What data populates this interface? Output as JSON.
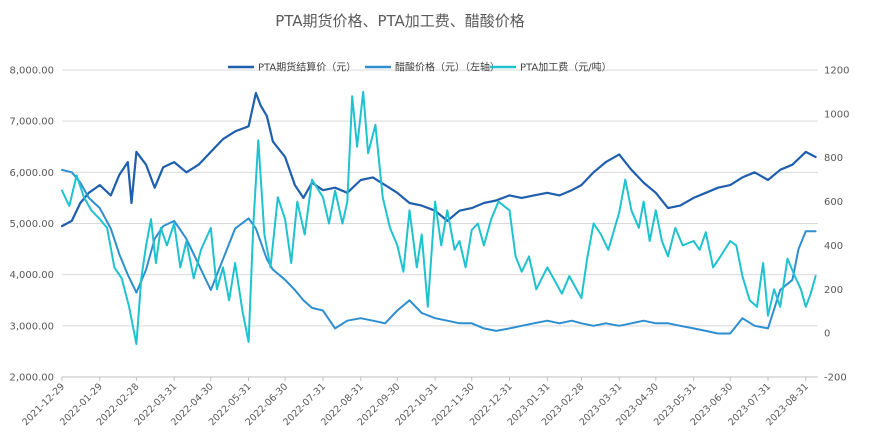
{
  "chart_data": {
    "type": "line",
    "title": "PTA期货价格、PTA加工费、醋酸价格",
    "x_ticks": [
      "2021-12-29",
      "2022-01-29",
      "2022-02-28",
      "2022-03-31",
      "2022-04-30",
      "2022-05-31",
      "2022-06-30",
      "2022-07-31",
      "2022-08-31",
      "2022-09-30",
      "2022-10-31",
      "2022-11-30",
      "2022-12-31",
      "2023-01-31",
      "2023-02-28",
      "2023-03-31",
      "2023-04-30",
      "2023-05-31",
      "2023-06-30",
      "2023-07-31",
      "2023-08-31"
    ],
    "y_left": {
      "ticks": [
        "2,000.00",
        "3,000.00",
        "4,000.00",
        "5,000.00",
        "6,000.00",
        "7,000.00",
        "8,000.00"
      ],
      "range": [
        2000,
        8000
      ]
    },
    "y_right": {
      "ticks": [
        "-200",
        "0",
        "200",
        "400",
        "600",
        "800",
        "1000",
        "1200"
      ],
      "range": [
        -200,
        1200
      ]
    },
    "legend_position": "top",
    "grid": true,
    "series": [
      {
        "name": "PTA期货结算价（元）",
        "axis": "left",
        "color": "#1f5fad",
        "points": [
          [
            "2021-12-29",
            4950
          ],
          [
            "2022-01-06",
            5050
          ],
          [
            "2022-01-13",
            5400
          ],
          [
            "2022-01-20",
            5600
          ],
          [
            "2022-01-29",
            5750
          ],
          [
            "2022-02-07",
            5550
          ],
          [
            "2022-02-14",
            5950
          ],
          [
            "2022-02-21",
            6200
          ],
          [
            "2022-02-24",
            5400
          ],
          [
            "2022-02-28",
            6400
          ],
          [
            "2022-03-08",
            6150
          ],
          [
            "2022-03-15",
            5700
          ],
          [
            "2022-03-22",
            6100
          ],
          [
            "2022-03-31",
            6200
          ],
          [
            "2022-04-10",
            6000
          ],
          [
            "2022-04-20",
            6150
          ],
          [
            "2022-04-30",
            6400
          ],
          [
            "2022-05-10",
            6650
          ],
          [
            "2022-05-20",
            6800
          ],
          [
            "2022-05-31",
            6900
          ],
          [
            "2022-06-06",
            7550
          ],
          [
            "2022-06-10",
            7300
          ],
          [
            "2022-06-15",
            7100
          ],
          [
            "2022-06-20",
            6600
          ],
          [
            "2022-06-30",
            6300
          ],
          [
            "2022-07-08",
            5750
          ],
          [
            "2022-07-15",
            5500
          ],
          [
            "2022-07-22",
            5800
          ],
          [
            "2022-07-31",
            5650
          ],
          [
            "2022-08-10",
            5700
          ],
          [
            "2022-08-20",
            5600
          ],
          [
            "2022-08-31",
            5850
          ],
          [
            "2022-09-10",
            5900
          ],
          [
            "2022-09-20",
            5750
          ],
          [
            "2022-09-30",
            5600
          ],
          [
            "2022-10-10",
            5400
          ],
          [
            "2022-10-20",
            5350
          ],
          [
            "2022-10-31",
            5250
          ],
          [
            "2022-11-10",
            5050
          ],
          [
            "2022-11-20",
            5250
          ],
          [
            "2022-11-30",
            5300
          ],
          [
            "2022-12-10",
            5400
          ],
          [
            "2022-12-20",
            5450
          ],
          [
            "2022-12-31",
            5550
          ],
          [
            "2023-01-10",
            5500
          ],
          [
            "2023-01-20",
            5550
          ],
          [
            "2023-01-31",
            5600
          ],
          [
            "2023-02-10",
            5550
          ],
          [
            "2023-02-20",
            5650
          ],
          [
            "2023-02-28",
            5750
          ],
          [
            "2023-03-10",
            6000
          ],
          [
            "2023-03-20",
            6200
          ],
          [
            "2023-03-31",
            6350
          ],
          [
            "2023-04-10",
            6050
          ],
          [
            "2023-04-20",
            5800
          ],
          [
            "2023-04-30",
            5600
          ],
          [
            "2023-05-10",
            5300
          ],
          [
            "2023-05-20",
            5350
          ],
          [
            "2023-05-31",
            5500
          ],
          [
            "2023-06-10",
            5600
          ],
          [
            "2023-06-20",
            5700
          ],
          [
            "2023-06-30",
            5750
          ],
          [
            "2023-07-10",
            5900
          ],
          [
            "2023-07-20",
            6000
          ],
          [
            "2023-07-31",
            5850
          ],
          [
            "2023-08-10",
            6050
          ],
          [
            "2023-08-20",
            6150
          ],
          [
            "2023-08-31",
            6400
          ],
          [
            "2023-09-08",
            6300
          ]
        ]
      },
      {
        "name": "醋酸价格（元）（左轴）",
        "axis": "left",
        "color": "#2e8fd0",
        "points": [
          [
            "2021-12-29",
            6050
          ],
          [
            "2022-01-06",
            6000
          ],
          [
            "2022-01-13",
            5800
          ],
          [
            "2022-01-20",
            5500
          ],
          [
            "2022-01-29",
            5300
          ],
          [
            "2022-02-07",
            4900
          ],
          [
            "2022-02-14",
            4400
          ],
          [
            "2022-02-21",
            4000
          ],
          [
            "2022-02-28",
            3650
          ],
          [
            "2022-03-08",
            4100
          ],
          [
            "2022-03-15",
            4700
          ],
          [
            "2022-03-22",
            4950
          ],
          [
            "2022-03-31",
            5050
          ],
          [
            "2022-04-10",
            4700
          ],
          [
            "2022-04-20",
            4200
          ],
          [
            "2022-04-30",
            3700
          ],
          [
            "2022-05-10",
            4300
          ],
          [
            "2022-05-20",
            4900
          ],
          [
            "2022-05-31",
            5100
          ],
          [
            "2022-06-06",
            4900
          ],
          [
            "2022-06-15",
            4300
          ],
          [
            "2022-06-20",
            4100
          ],
          [
            "2022-06-30",
            3900
          ],
          [
            "2022-07-08",
            3700
          ],
          [
            "2022-07-15",
            3500
          ],
          [
            "2022-07-22",
            3350
          ],
          [
            "2022-07-31",
            3300
          ],
          [
            "2022-08-10",
            2950
          ],
          [
            "2022-08-20",
            3100
          ],
          [
            "2022-08-31",
            3150
          ],
          [
            "2022-09-10",
            3100
          ],
          [
            "2022-09-20",
            3050
          ],
          [
            "2022-09-30",
            3300
          ],
          [
            "2022-10-10",
            3500
          ],
          [
            "2022-10-20",
            3250
          ],
          [
            "2022-10-31",
            3150
          ],
          [
            "2022-11-10",
            3100
          ],
          [
            "2022-11-20",
            3050
          ],
          [
            "2022-11-30",
            3050
          ],
          [
            "2022-12-10",
            2950
          ],
          [
            "2022-12-20",
            2900
          ],
          [
            "2022-12-31",
            2950
          ],
          [
            "2023-01-10",
            3000
          ],
          [
            "2023-01-20",
            3050
          ],
          [
            "2023-01-31",
            3100
          ],
          [
            "2023-02-10",
            3050
          ],
          [
            "2023-02-20",
            3100
          ],
          [
            "2023-02-28",
            3050
          ],
          [
            "2023-03-10",
            3000
          ],
          [
            "2023-03-20",
            3050
          ],
          [
            "2023-03-31",
            3000
          ],
          [
            "2023-04-10",
            3050
          ],
          [
            "2023-04-20",
            3100
          ],
          [
            "2023-04-30",
            3050
          ],
          [
            "2023-05-10",
            3050
          ],
          [
            "2023-05-20",
            3000
          ],
          [
            "2023-05-31",
            2950
          ],
          [
            "2023-06-10",
            2900
          ],
          [
            "2023-06-20",
            2850
          ],
          [
            "2023-06-30",
            2850
          ],
          [
            "2023-07-10",
            3150
          ],
          [
            "2023-07-20",
            3000
          ],
          [
            "2023-07-31",
            2950
          ],
          [
            "2023-08-10",
            3700
          ],
          [
            "2023-08-20",
            3900
          ],
          [
            "2023-08-25",
            4500
          ],
          [
            "2023-08-31",
            4850
          ],
          [
            "2023-09-08",
            4850
          ]
        ]
      },
      {
        "name": "PTA加工费（元/吨）",
        "axis": "right",
        "color": "#1fc2cf",
        "points": [
          [
            "2021-12-29",
            650
          ],
          [
            "2022-01-04",
            580
          ],
          [
            "2022-01-10",
            720
          ],
          [
            "2022-01-16",
            620
          ],
          [
            "2022-01-22",
            560
          ],
          [
            "2022-01-29",
            520
          ],
          [
            "2022-02-04",
            480
          ],
          [
            "2022-02-10",
            300
          ],
          [
            "2022-02-16",
            250
          ],
          [
            "2022-02-22",
            120
          ],
          [
            "2022-02-28",
            -50
          ],
          [
            "2022-03-04",
            250
          ],
          [
            "2022-03-08",
            400
          ],
          [
            "2022-03-12",
            520
          ],
          [
            "2022-03-16",
            320
          ],
          [
            "2022-03-20",
            480
          ],
          [
            "2022-03-25",
            400
          ],
          [
            "2022-03-31",
            500
          ],
          [
            "2022-04-05",
            300
          ],
          [
            "2022-04-10",
            420
          ],
          [
            "2022-04-16",
            250
          ],
          [
            "2022-04-22",
            380
          ],
          [
            "2022-04-30",
            480
          ],
          [
            "2022-05-05",
            200
          ],
          [
            "2022-05-10",
            300
          ],
          [
            "2022-05-15",
            150
          ],
          [
            "2022-05-20",
            320
          ],
          [
            "2022-05-26",
            100
          ],
          [
            "2022-05-31",
            -40
          ],
          [
            "2022-06-04",
            500
          ],
          [
            "2022-06-08",
            880
          ],
          [
            "2022-06-13",
            450
          ],
          [
            "2022-06-18",
            300
          ],
          [
            "2022-06-24",
            620
          ],
          [
            "2022-06-30",
            520
          ],
          [
            "2022-07-05",
            320
          ],
          [
            "2022-07-10",
            600
          ],
          [
            "2022-07-16",
            450
          ],
          [
            "2022-07-22",
            700
          ],
          [
            "2022-07-31",
            620
          ],
          [
            "2022-08-05",
            500
          ],
          [
            "2022-08-10",
            650
          ],
          [
            "2022-08-16",
            500
          ],
          [
            "2022-08-20",
            600
          ],
          [
            "2022-08-24",
            1080
          ],
          [
            "2022-08-28",
            850
          ],
          [
            "2022-09-02",
            1100
          ],
          [
            "2022-09-06",
            820
          ],
          [
            "2022-09-12",
            950
          ],
          [
            "2022-09-18",
            620
          ],
          [
            "2022-09-24",
            480
          ],
          [
            "2022-09-30",
            400
          ],
          [
            "2022-10-05",
            280
          ],
          [
            "2022-10-10",
            560
          ],
          [
            "2022-10-16",
            300
          ],
          [
            "2022-10-20",
            450
          ],
          [
            "2022-10-25",
            120
          ],
          [
            "2022-10-31",
            600
          ],
          [
            "2022-11-05",
            400
          ],
          [
            "2022-11-10",
            560
          ],
          [
            "2022-11-16",
            380
          ],
          [
            "2022-11-20",
            420
          ],
          [
            "2022-11-25",
            300
          ],
          [
            "2022-11-30",
            470
          ],
          [
            "2022-12-05",
            500
          ],
          [
            "2022-12-10",
            400
          ],
          [
            "2022-12-16",
            520
          ],
          [
            "2022-12-22",
            600
          ],
          [
            "2022-12-31",
            560
          ],
          [
            "2023-01-05",
            350
          ],
          [
            "2023-01-10",
            280
          ],
          [
            "2023-01-16",
            350
          ],
          [
            "2023-01-22",
            200
          ],
          [
            "2023-01-31",
            300
          ],
          [
            "2023-02-05",
            250
          ],
          [
            "2023-02-12",
            180
          ],
          [
            "2023-02-18",
            260
          ],
          [
            "2023-02-28",
            160
          ],
          [
            "2023-03-05",
            350
          ],
          [
            "2023-03-10",
            500
          ],
          [
            "2023-03-16",
            450
          ],
          [
            "2023-03-22",
            380
          ],
          [
            "2023-03-31",
            550
          ],
          [
            "2023-04-05",
            700
          ],
          [
            "2023-04-10",
            560
          ],
          [
            "2023-04-16",
            480
          ],
          [
            "2023-04-20",
            600
          ],
          [
            "2023-04-25",
            420
          ],
          [
            "2023-04-30",
            560
          ],
          [
            "2023-05-05",
            420
          ],
          [
            "2023-05-10",
            350
          ],
          [
            "2023-05-16",
            480
          ],
          [
            "2023-05-22",
            400
          ],
          [
            "2023-05-31",
            420
          ],
          [
            "2023-06-05",
            380
          ],
          [
            "2023-06-10",
            460
          ],
          [
            "2023-06-16",
            300
          ],
          [
            "2023-06-22",
            350
          ],
          [
            "2023-06-30",
            420
          ],
          [
            "2023-07-05",
            400
          ],
          [
            "2023-07-10",
            260
          ],
          [
            "2023-07-16",
            150
          ],
          [
            "2023-07-22",
            120
          ],
          [
            "2023-07-27",
            320
          ],
          [
            "2023-07-31",
            80
          ],
          [
            "2023-08-05",
            200
          ],
          [
            "2023-08-10",
            120
          ],
          [
            "2023-08-16",
            340
          ],
          [
            "2023-08-22",
            260
          ],
          [
            "2023-08-27",
            200
          ],
          [
            "2023-08-31",
            120
          ],
          [
            "2023-09-04",
            180
          ],
          [
            "2023-09-08",
            260
          ]
        ]
      }
    ]
  }
}
